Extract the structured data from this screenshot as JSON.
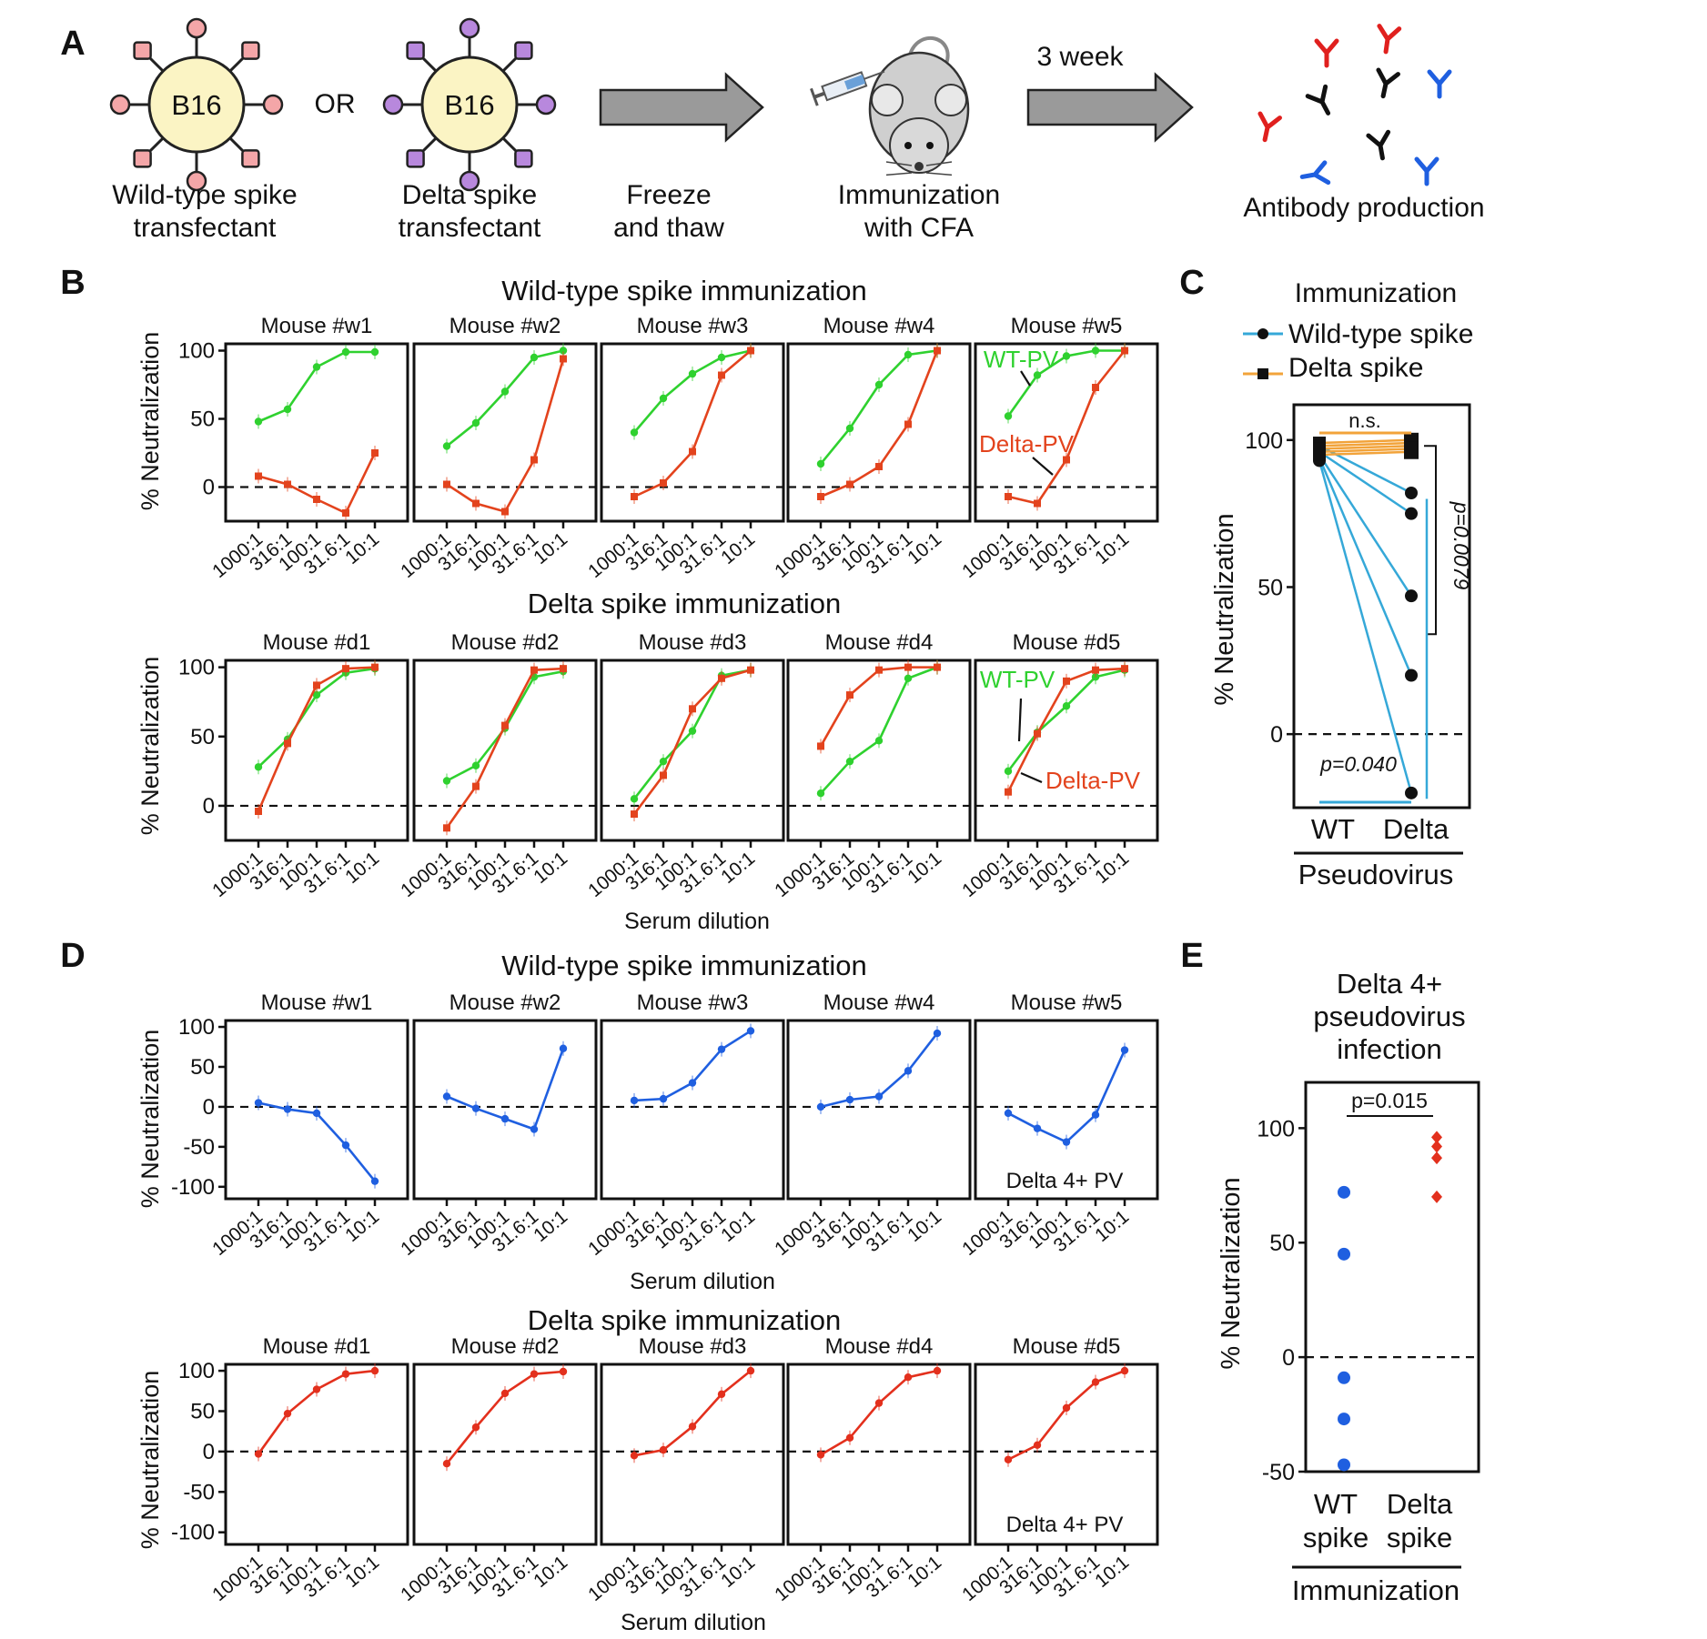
{
  "panel_letters": [
    "A",
    "B",
    "C",
    "D",
    "E"
  ],
  "panelA": {
    "cell1_label": "B16",
    "cell2_label": "B16",
    "or_text": "OR",
    "cell1_caption": [
      "Wild-type spike",
      "transfectant"
    ],
    "cell2_caption": [
      "Delta spike",
      "transfectant"
    ],
    "step1_caption": [
      "Freeze",
      "and thaw"
    ],
    "mouse_caption": [
      "Immunization",
      "with CFA"
    ],
    "arrow2_label": "3 week",
    "antibody_caption": "Antibody production",
    "colors": {
      "wt_spike": "#f4a6a8",
      "delta_spike": "#b888dd",
      "cell_fill": "#fbf4c4",
      "arrow": "#9a9a9a",
      "ab_red": "#e0201e",
      "ab_blue": "#1f5fe0",
      "ab_black": "#111111"
    }
  },
  "panelB": {
    "title_top": "Wild-type spike immunization",
    "title_bottom": "Delta spike immunization",
    "xlabel": "Serum dilution",
    "ylabel": "% Neutralization",
    "wt_label": "WT-PV",
    "delta_label": "Delta-PV",
    "colors": {
      "wt_pv": "#2fd12f",
      "delta_pv": "#e3431d"
    }
  },
  "panelC": {
    "legend_title": "Immunization",
    "legend_items": [
      "Wild-type spike",
      "Delta spike"
    ],
    "ns_text": "n.s.",
    "p_right": "p=0.0079",
    "p_bottom": "p=0.040",
    "ylabel": "% Neutralization",
    "xgroup_label": "Pseudovirus",
    "colors": {
      "wt_line": "#35a8d8",
      "delta_line": "#f2a33a"
    }
  },
  "panelD": {
    "title_top": "Wild-type spike immunization",
    "title_bottom": "Delta spike immunization",
    "xlabel": "Serum dilution",
    "ylabel": "% Neutralization",
    "pv_label": "Delta 4+ PV",
    "colors": {
      "wt_imm": "#1f5fe0",
      "delta_imm": "#e3301d"
    }
  },
  "panelE": {
    "title": [
      "Delta 4+",
      "pseudovirus",
      "infection"
    ],
    "p_text": "p=0.015",
    "ylabel": "% Neutralization",
    "xgroup_label": "Immunization",
    "colors": {
      "wt_spike": "#1f5fe0",
      "delta_spike": "#e3301d"
    }
  },
  "chart_data": [
    {
      "panel": "B-top",
      "type": "line",
      "x": [
        "1000:1",
        "316:1",
        "100:1",
        "31.6:1",
        "10:1"
      ],
      "ylim": [
        -25,
        105
      ],
      "yticks": [
        0,
        50,
        100
      ],
      "subplots": [
        {
          "title": "Mouse #w1",
          "series": [
            {
              "values": [
                48,
                57,
                88,
                99,
                99
              ]
            },
            {
              "values": [
                8,
                2,
                -9,
                -19,
                25
              ]
            }
          ]
        },
        {
          "title": "Mouse #w2",
          "series": [
            {
              "values": [
                30,
                47,
                70,
                95,
                100
              ]
            },
            {
              "values": [
                2,
                -12,
                -18,
                20,
                94
              ]
            }
          ]
        },
        {
          "title": "Mouse #w3",
          "series": [
            {
              "values": [
                40,
                65,
                83,
                95,
                100
              ]
            },
            {
              "values": [
                -7,
                3,
                26,
                82,
                100
              ]
            }
          ]
        },
        {
          "title": "Mouse #w4",
          "series": [
            {
              "values": [
                17,
                43,
                75,
                97,
                100
              ]
            },
            {
              "values": [
                -7,
                2,
                15,
                46,
                100
              ]
            }
          ]
        },
        {
          "title": "Mouse #w5",
          "series": [
            {
              "values": [
                52,
                82,
                96,
                100,
                100
              ]
            },
            {
              "values": [
                -7,
                -12,
                20,
                73,
                100
              ]
            }
          ]
        }
      ]
    },
    {
      "panel": "B-bottom",
      "type": "line",
      "x": [
        "1000:1",
        "316:1",
        "100:1",
        "31.6:1",
        "10:1"
      ],
      "ylim": [
        -25,
        105
      ],
      "yticks": [
        0,
        50,
        100
      ],
      "subplots": [
        {
          "title": "Mouse #d1",
          "series": [
            {
              "values": [
                28,
                48,
                80,
                96,
                99
              ]
            },
            {
              "values": [
                -4,
                45,
                87,
                99,
                100
              ]
            }
          ]
        },
        {
          "title": "Mouse #d2",
          "series": [
            {
              "values": [
                18,
                29,
                56,
                93,
                97
              ]
            },
            {
              "values": [
                -16,
                14,
                58,
                98,
                99
              ]
            }
          ]
        },
        {
          "title": "Mouse #d3",
          "series": [
            {
              "values": [
                5,
                32,
                54,
                94,
                98
              ]
            },
            {
              "values": [
                -6,
                22,
                70,
                92,
                98
              ]
            }
          ]
        },
        {
          "title": "Mouse #d4",
          "series": [
            {
              "values": [
                9,
                32,
                47,
                92,
                100
              ]
            },
            {
              "values": [
                43,
                80,
                98,
                100,
                100
              ]
            }
          ]
        },
        {
          "title": "Mouse #d5",
          "series": [
            {
              "values": [
                25,
                53,
                72,
                93,
                98
              ]
            },
            {
              "values": [
                10,
                52,
                90,
                98,
                99
              ]
            }
          ]
        }
      ]
    },
    {
      "panel": "C",
      "type": "scatter",
      "categories": [
        "WT",
        "Delta"
      ],
      "ylim": [
        -25,
        112
      ],
      "yticks": [
        0,
        50,
        100
      ],
      "series": [
        {
          "name": "Wild-type spike",
          "pairs": [
            [
              98,
              82
            ],
            [
              96,
              75
            ],
            [
              95,
              47
            ],
            [
              94,
              20
            ],
            [
              93,
              -20
            ]
          ]
        },
        {
          "name": "Delta spike",
          "pairs": [
            [
              99,
              100
            ],
            [
              98,
              99
            ],
            [
              97,
              98
            ],
            [
              96,
              97
            ],
            [
              95,
              96
            ]
          ]
        }
      ]
    },
    {
      "panel": "D-top",
      "type": "line",
      "x": [
        "1000:1",
        "316:1",
        "100:1",
        "31.6:1",
        "10:1"
      ],
      "ylim": [
        -115,
        108
      ],
      "yticks": [
        -100,
        -50,
        0,
        50,
        100
      ],
      "subplots": [
        {
          "title": "Mouse #w1",
          "series": [
            {
              "values": [
                5,
                -3,
                -8,
                -48,
                -93
              ]
            }
          ]
        },
        {
          "title": "Mouse #w2",
          "series": [
            {
              "values": [
                13,
                -2,
                -15,
                -28,
                73
              ]
            }
          ]
        },
        {
          "title": "Mouse #w3",
          "series": [
            {
              "values": [
                8,
                10,
                30,
                72,
                95
              ]
            }
          ]
        },
        {
          "title": "Mouse #w4",
          "series": [
            {
              "values": [
                0,
                9,
                13,
                45,
                92
              ]
            }
          ]
        },
        {
          "title": "Mouse #w5",
          "series": [
            {
              "values": [
                -8,
                -27,
                -44,
                -10,
                71
              ]
            }
          ]
        }
      ]
    },
    {
      "panel": "D-bottom",
      "type": "line",
      "x": [
        "1000:1",
        "316:1",
        "100:1",
        "31.6:1",
        "10:1"
      ],
      "ylim": [
        -115,
        108
      ],
      "yticks": [
        -100,
        -50,
        0,
        50,
        100
      ],
      "subplots": [
        {
          "title": "Mouse #d1",
          "series": [
            {
              "values": [
                -3,
                47,
                77,
                96,
                100
              ]
            }
          ]
        },
        {
          "title": "Mouse #d2",
          "series": [
            {
              "values": [
                -15,
                30,
                72,
                96,
                99
              ]
            }
          ]
        },
        {
          "title": "Mouse #d3",
          "series": [
            {
              "values": [
                -5,
                2,
                31,
                71,
                100
              ]
            }
          ]
        },
        {
          "title": "Mouse #d4",
          "series": [
            {
              "values": [
                -4,
                17,
                60,
                92,
                100
              ]
            }
          ]
        },
        {
          "title": "Mouse #d5",
          "series": [
            {
              "values": [
                -10,
                8,
                54,
                86,
                100
              ]
            }
          ]
        }
      ]
    },
    {
      "panel": "E",
      "type": "scatter",
      "categories": [
        "WT spike",
        "Delta spike"
      ],
      "ylim": [
        -50,
        120
      ],
      "yticks": [
        -50,
        0,
        50,
        100
      ],
      "series": [
        {
          "values": [
            72,
            45,
            -9,
            -27,
            -47
          ]
        },
        {
          "values": [
            96,
            92,
            87,
            70
          ]
        }
      ]
    }
  ]
}
